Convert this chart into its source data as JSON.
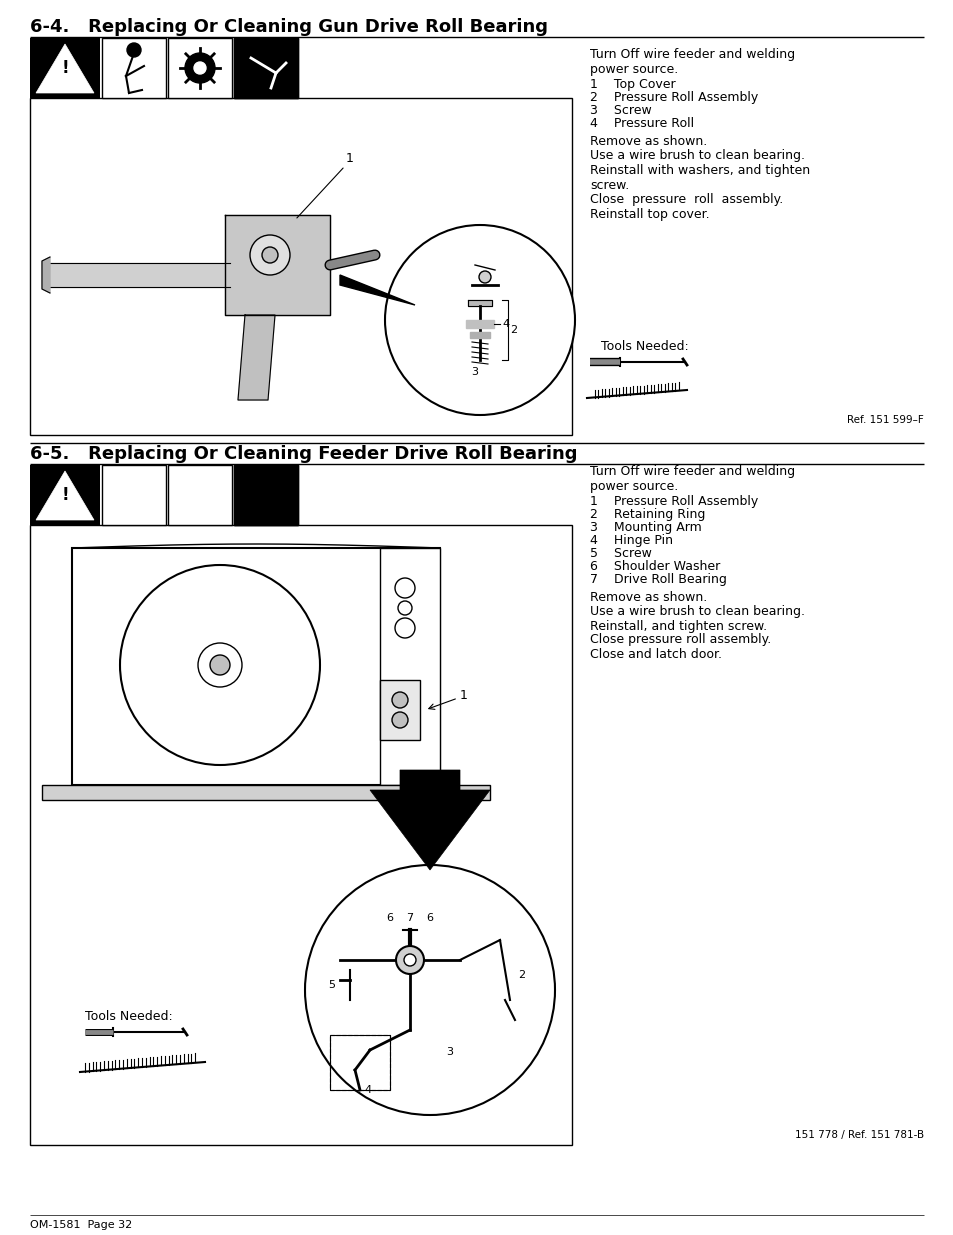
{
  "bg_color": "#ffffff",
  "page_width": 9.54,
  "page_height": 12.35,
  "dpi": 100,
  "page_footer": "OM-1581  Page 32",
  "s1_title": "6-4.   Replacing Or Cleaning Gun Drive Roll Bearing",
  "s1_ref": "Ref. 151 599–F",
  "s1_intro": "Turn Off wire feeder and welding\npower source.",
  "s1_items": [
    "1    Top Cover",
    "2    Pressure Roll Assembly",
    "3    Screw",
    "4    Pressure Roll"
  ],
  "s1_para1": "Remove as shown.",
  "s1_para2": "Use a wire brush to clean bearing.\nReinstall with washers, and tighten\nscrew.",
  "s1_para3": "Close  pressure  roll  assembly.\nReinstall top cover.",
  "s1_tools": "Tools Needed:",
  "s2_title": "6-5.   Replacing Or Cleaning Feeder Drive Roll Bearing",
  "s2_ref": "151 778 / Ref. 151 781-B",
  "s2_intro": "Turn Off wire feeder and welding\npower source.",
  "s2_items": [
    "1    Pressure Roll Assembly",
    "2    Retaining Ring",
    "3    Mounting Arm",
    "4    Hinge Pin",
    "5    Screw",
    "6    Shoulder Washer",
    "7    Drive Roll Bearing"
  ],
  "s2_para1": "Remove as shown.",
  "s2_para2": "Use a wire brush to clean bearing.\nReinstall, and tighten screw.",
  "s2_para3": "Close pressure roll assembly.\nClose and latch door.",
  "s2_tools": "Tools Needed:"
}
